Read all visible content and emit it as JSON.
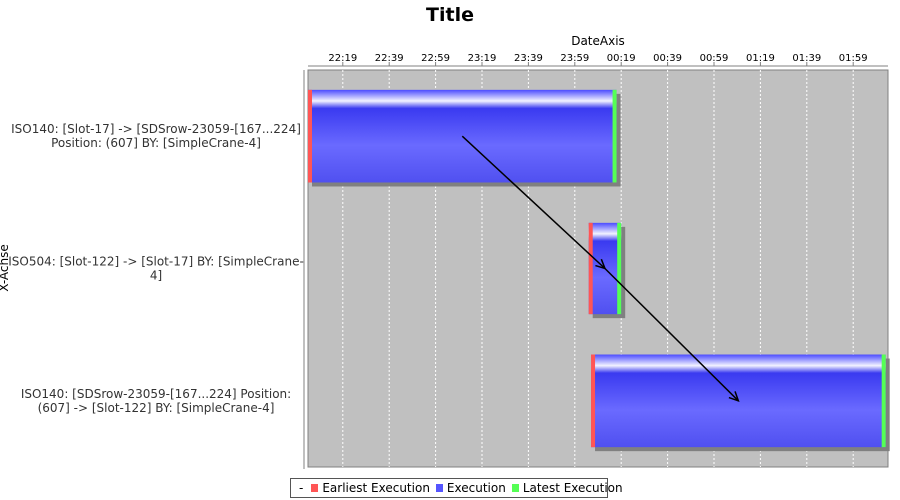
{
  "chart_data": {
    "type": "gantt",
    "title": "Title",
    "xlabel": "DateAxis",
    "ylabel": "X-Achse",
    "x_ticks": [
      "22:19",
      "22:39",
      "22:59",
      "23:19",
      "23:39",
      "23:59",
      "00:19",
      "00:39",
      "00:59",
      "01:19",
      "01:39",
      "01:59"
    ],
    "x_range": [
      "22:04",
      "02:14"
    ],
    "grid": true,
    "categories": [
      {
        "lines": [
          "ISO140: [Slot-17] -> [SDSrow-23059-[167...224]",
          "Position: (607] BY: [SimpleCrane-4]"
        ]
      },
      {
        "lines": [
          "ISO504: [Slot-122] -> [Slot-17] BY: [SimpleCrane-",
          "4]"
        ]
      },
      {
        "lines": [
          "ISO140: [SDSrow-23059-[167...224]  Position:",
          "(607] -> [Slot-122] BY: [SimpleCrane-4]"
        ]
      }
    ],
    "tasks": [
      {
        "category": 0,
        "start": "22:04",
        "end": "00:17"
      },
      {
        "category": 1,
        "start": "00:05",
        "end": "00:19"
      },
      {
        "category": 2,
        "start": "00:06",
        "end": "02:13"
      }
    ],
    "dependencies": [
      {
        "from": 0,
        "to": 1
      },
      {
        "from": 1,
        "to": 2
      }
    ],
    "legend": {
      "prefix": "-",
      "placement": "bottom",
      "entries": [
        {
          "label": "Earliest Execution",
          "color": "#ff5555"
        },
        {
          "label": "Execution",
          "color": "#5555ff"
        },
        {
          "label": "Latest Execution",
          "color": "#55ff55"
        }
      ]
    },
    "colors": {
      "plot_bg": "#c0c0c0",
      "bar": "#5a5aff",
      "earliest": "#ff5555",
      "latest": "#55ff55"
    }
  }
}
